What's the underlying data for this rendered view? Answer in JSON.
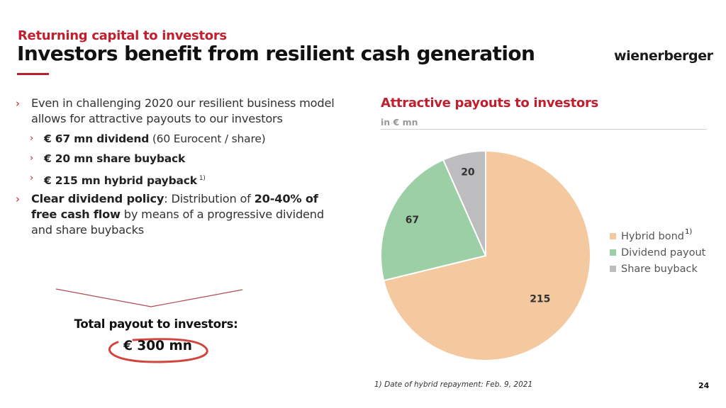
{
  "header": {
    "supertitle": "Returning capital to investors",
    "title": "Investors benefit from resilient cash generation",
    "logo": "wienerberger",
    "accent_color": "#c0202e"
  },
  "bullets": {
    "b1_text": "Even in challenging 2020 our resilient business model allows for attractive payouts to our investors",
    "sub": [
      {
        "bold": "€ 67 mn dividend",
        "normal": " (60 Eurocent / share)",
        "footnote": ""
      },
      {
        "bold": "€ 20 mn share buyback",
        "normal": "",
        "footnote": ""
      },
      {
        "bold": "€ 215 mn hybrid payback",
        "normal": "",
        "footnote": "1)"
      }
    ],
    "b2": {
      "bold1": "Clear dividend policy",
      "text1": ": Distribution of ",
      "bold2": "20-40% of free cash flow",
      "text2": " by means of a progressive dividend and share buybacks"
    },
    "chevron": "›"
  },
  "total": {
    "label": "Total payout to investors:",
    "value": "€ 300 mn"
  },
  "chart_data": {
    "type": "pie",
    "title": "Attractive payouts to investors",
    "subtitle": "in € mn",
    "categories": [
      "Hybrid bond",
      "Dividend payout",
      "Share buyback"
    ],
    "values": [
      215,
      67,
      20
    ],
    "colors": [
      "#f4c9a0",
      "#9dcfa7",
      "#bdbdbf"
    ],
    "labels": [
      "215",
      "67",
      "20"
    ],
    "legend_position": "right",
    "legend_footnote": "1)",
    "start_angle_deg": 0,
    "direction": "clockwise"
  },
  "footer": {
    "footnote": "1) Date of hybrid repayment: Feb. 9, 2021",
    "page_number": "24"
  }
}
